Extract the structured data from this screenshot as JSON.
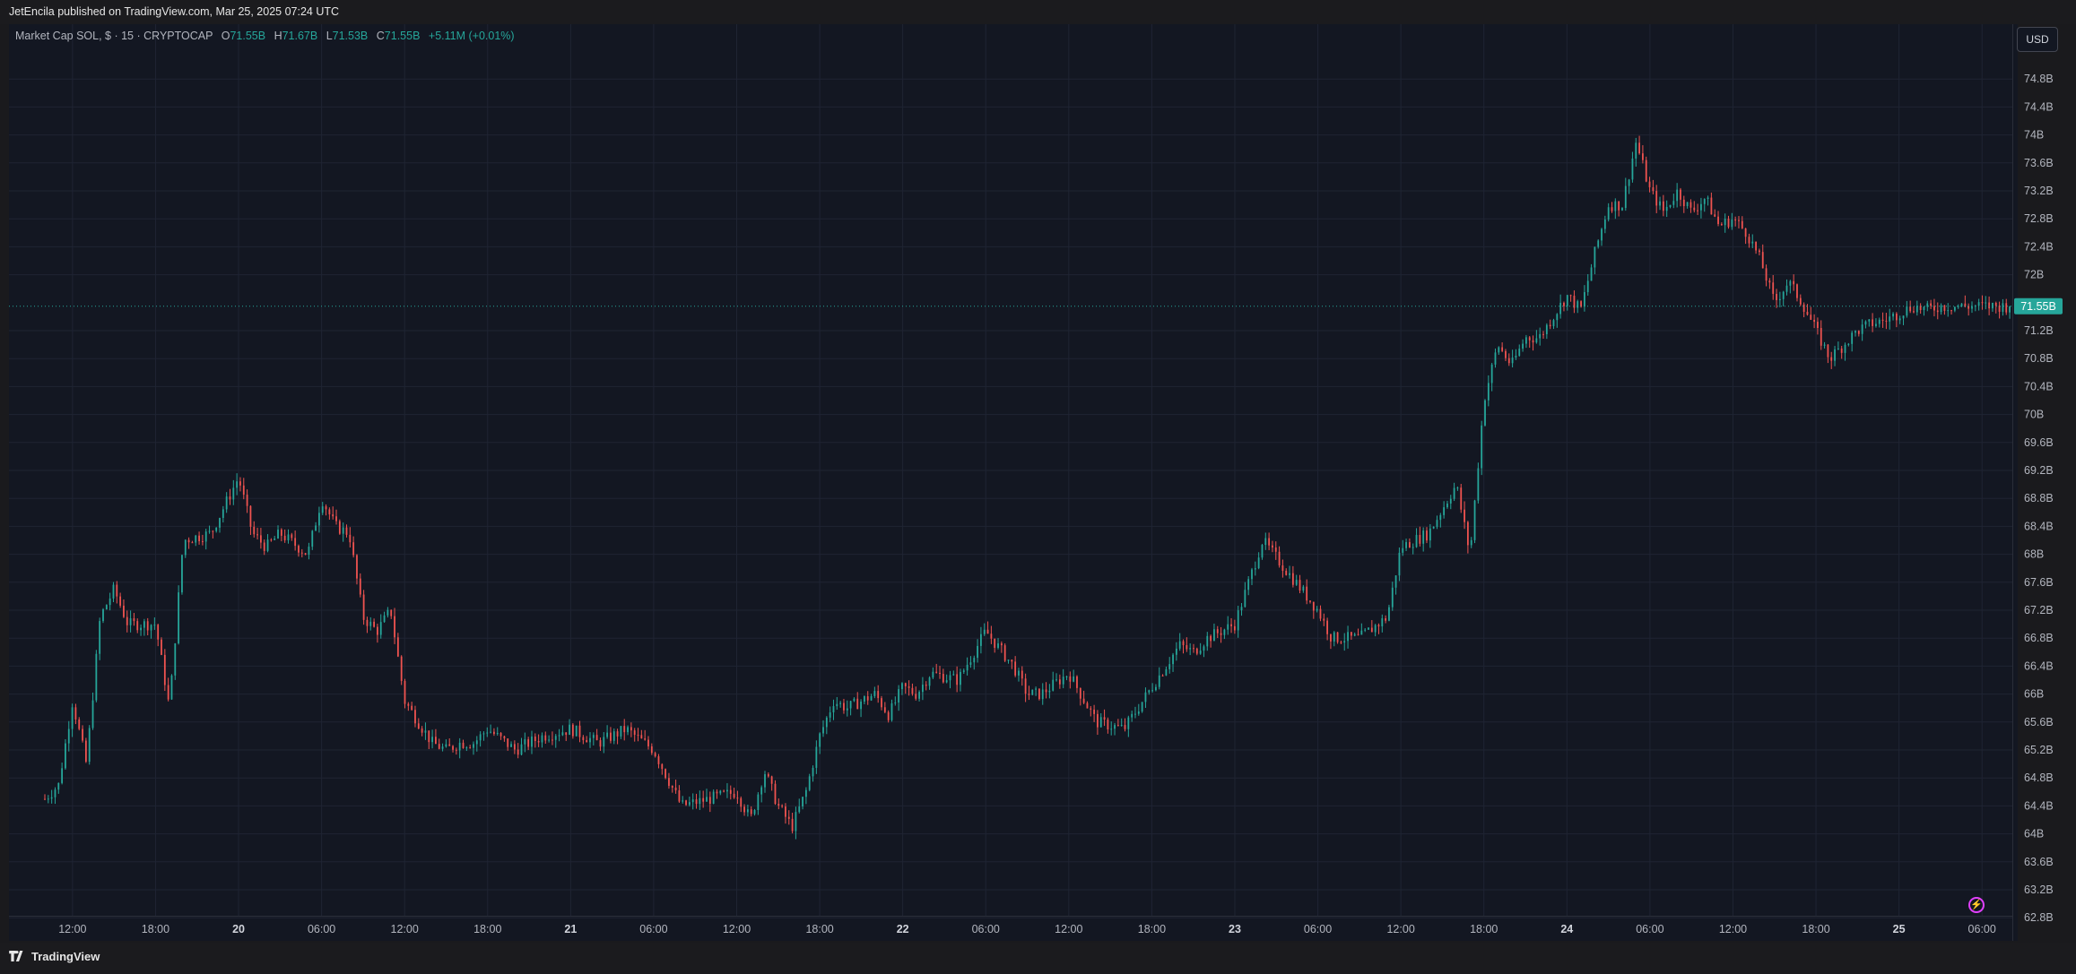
{
  "header": {
    "published": "JetEncila published on TradingView.com, Mar 25, 2025 07:24 UTC"
  },
  "legend": {
    "symbol": "Market Cap SOL, $ · 15 · CRYPTOCAP",
    "o_label": "O",
    "o": "71.55B",
    "h_label": "H",
    "h": "71.67B",
    "l_label": "L",
    "l": "71.53B",
    "c_label": "C",
    "c": "71.55B",
    "change": "+5.11M (+0.01%)"
  },
  "currency_button": "USD",
  "last_price_label": "71.55B",
  "footer": {
    "brand": "TradingView"
  },
  "colors": {
    "up": "#26a69a",
    "down": "#ef5350",
    "bg": "#131722",
    "grid": "#1f2433",
    "text": "#b2b5be"
  },
  "chart_data": {
    "type": "candlestick",
    "interval": "15",
    "grid": true,
    "last_price": 71.55,
    "y_unit": "B",
    "ylim": [
      62.65,
      75.2
    ],
    "y_ticks": [
      "74.8B",
      "74.4B",
      "74B",
      "73.6B",
      "73.2B",
      "72.8B",
      "72.4B",
      "72B",
      "71.2B",
      "70.8B",
      "70.4B",
      "70B",
      "69.6B",
      "69.2B",
      "68.8B",
      "68.4B",
      "68B",
      "67.6B",
      "67.2B",
      "66.8B",
      "66.4B",
      "66B",
      "65.6B",
      "65.2B",
      "64.8B",
      "64.4B",
      "64B",
      "63.6B",
      "63.2B",
      "62.8B"
    ],
    "x_ticks": [
      {
        "label": "12:00",
        "t": 2
      },
      {
        "label": "18:00",
        "t": 8
      },
      {
        "label": "20",
        "t": 14,
        "bold": true
      },
      {
        "label": "06:00",
        "t": 20
      },
      {
        "label": "12:00",
        "t": 26
      },
      {
        "label": "18:00",
        "t": 32
      },
      {
        "label": "21",
        "t": 38,
        "bold": true
      },
      {
        "label": "06:00",
        "t": 44
      },
      {
        "label": "12:00",
        "t": 50
      },
      {
        "label": "18:00",
        "t": 56
      },
      {
        "label": "22",
        "t": 62,
        "bold": true
      },
      {
        "label": "06:00",
        "t": 68
      },
      {
        "label": "12:00",
        "t": 74
      },
      {
        "label": "18:00",
        "t": 80
      },
      {
        "label": "23",
        "t": 86,
        "bold": true
      },
      {
        "label": "06:00",
        "t": 92
      },
      {
        "label": "12:00",
        "t": 98
      },
      {
        "label": "18:00",
        "t": 104
      },
      {
        "label": "24",
        "t": 110,
        "bold": true
      },
      {
        "label": "06:00",
        "t": 116
      },
      {
        "label": "12:00",
        "t": 122
      },
      {
        "label": "18:00",
        "t": 128
      },
      {
        "label": "25",
        "t": 134,
        "bold": true
      },
      {
        "label": "06:00",
        "t": 140
      }
    ],
    "xlim": [
      -0.5,
      144.7
    ],
    "path_time": [
      0,
      1,
      2,
      3,
      4,
      5,
      6,
      8,
      9,
      10,
      12,
      13,
      14,
      15,
      16,
      17,
      19,
      20,
      21,
      22,
      23,
      24,
      25,
      26,
      28,
      29,
      30,
      31,
      32,
      34,
      36,
      38,
      40,
      42,
      44,
      46,
      48,
      50,
      51,
      52,
      53,
      54,
      55,
      56,
      57,
      58,
      60,
      61,
      62,
      63,
      64,
      66,
      68,
      70,
      71,
      72,
      74,
      76,
      78,
      80,
      82,
      83,
      84,
      86,
      88,
      90,
      92,
      93,
      95,
      97,
      98,
      100,
      102,
      103,
      104,
      105,
      106,
      107,
      108,
      110,
      111,
      112,
      113,
      114,
      115,
      116,
      117,
      118,
      119,
      120,
      121,
      122,
      123,
      124,
      125,
      126,
      127,
      128,
      129,
      130,
      131,
      132,
      133,
      134,
      135,
      136,
      137,
      138,
      139,
      140,
      141,
      142
    ],
    "path_value": [
      64.5,
      64.7,
      65.9,
      65.0,
      67.1,
      67.5,
      67.0,
      67.0,
      65.8,
      68.2,
      68.3,
      68.7,
      69.1,
      68.3,
      68.1,
      68.3,
      68.0,
      68.8,
      68.4,
      68.3,
      67.1,
      66.9,
      67.2,
      65.9,
      65.3,
      65.2,
      65.3,
      65.3,
      65.5,
      65.2,
      65.4,
      65.5,
      65.3,
      65.5,
      65.2,
      64.4,
      64.5,
      64.6,
      64.2,
      64.9,
      64.4,
      64.1,
      64.6,
      65.4,
      65.9,
      65.8,
      66.0,
      65.7,
      66.1,
      66.0,
      66.3,
      66.2,
      66.9,
      66.4,
      66.0,
      66.0,
      66.3,
      65.6,
      65.5,
      66.1,
      66.7,
      66.6,
      66.8,
      67.0,
      68.2,
      67.7,
      67.2,
      66.8,
      66.8,
      67.1,
      68.1,
      68.3,
      69.0,
      68.0,
      70.2,
      71.0,
      70.7,
      71.1,
      71.1,
      71.7,
      71.5,
      72.3,
      73.0,
      73.0,
      73.9,
      73.2,
      72.9,
      73.2,
      72.9,
      73.1,
      72.7,
      72.8,
      72.6,
      72.2,
      71.6,
      71.9,
      71.6,
      71.2,
      70.8,
      71.0,
      71.2,
      71.3,
      71.35,
      71.45,
      71.55,
      71.5,
      71.55,
      71.55,
      71.55,
      71.55,
      71.55,
      71.55
    ],
    "seed": 7
  }
}
